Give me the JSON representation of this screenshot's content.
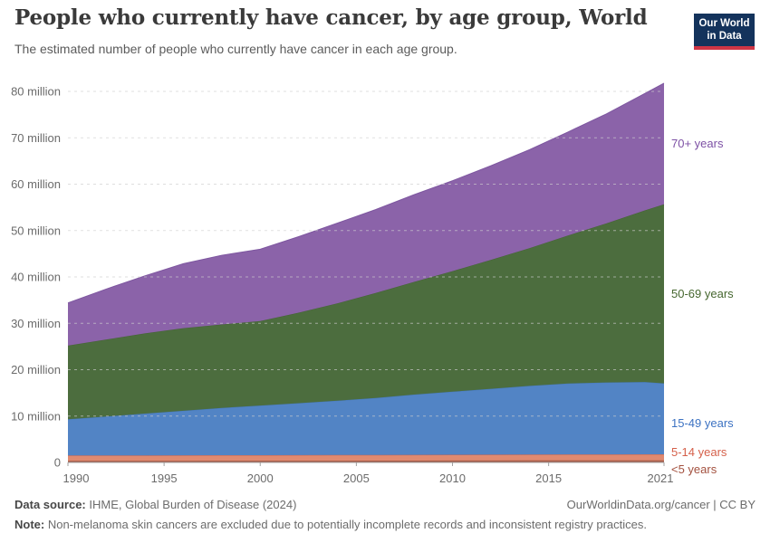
{
  "header": {
    "title": "People who currently have cancer, by age group, World",
    "subtitle": "The estimated number of people who currently have cancer in each age group.",
    "logo": {
      "line1": "Our World",
      "line2": "in Data",
      "bg": "#14335c",
      "bar": "#cf3545"
    }
  },
  "chart_data": {
    "type": "area",
    "stacked": true,
    "title": "People who currently have cancer, by age group, World",
    "unit": "million people",
    "grid": "horizontal-dashed",
    "legend_position": "right",
    "ylim": [
      0,
      80
    ],
    "x": [
      1990,
      1992,
      1994,
      1996,
      1998,
      2000,
      2002,
      2004,
      2006,
      2008,
      2010,
      2012,
      2014,
      2016,
      2018,
      2020,
      2021
    ],
    "xticks": [
      1990,
      1995,
      2000,
      2005,
      2010,
      2015,
      2021
    ],
    "yticks": [
      {
        "value": 0,
        "label": "0"
      },
      {
        "value": 10,
        "label": "10 million"
      },
      {
        "value": 20,
        "label": "20 million"
      },
      {
        "value": 30,
        "label": "30 million"
      },
      {
        "value": 40,
        "label": "40 million"
      },
      {
        "value": 50,
        "label": "50 million"
      },
      {
        "value": 60,
        "label": "60 million"
      },
      {
        "value": 70,
        "label": "70 million"
      },
      {
        "value": 80,
        "label": "80 million"
      }
    ],
    "series": [
      {
        "id": "under-5",
        "name": "<5 years",
        "fill": "#a9604d",
        "stroke": "#96513f",
        "text": "#a3513f",
        "values": [
          0.35,
          0.35,
          0.36,
          0.36,
          0.37,
          0.37,
          0.38,
          0.38,
          0.39,
          0.39,
          0.4,
          0.41,
          0.42,
          0.42,
          0.42,
          0.42,
          0.42
        ]
      },
      {
        "id": "5-14",
        "name": "5-14 years",
        "fill": "#e08a70",
        "stroke": "#c86450",
        "text": "#d5604a",
        "values": [
          1.15,
          1.16,
          1.17,
          1.19,
          1.19,
          1.2,
          1.21,
          1.22,
          1.23,
          1.24,
          1.25,
          1.27,
          1.29,
          1.31,
          1.32,
          1.33,
          1.33
        ]
      },
      {
        "id": "15-49",
        "name": "15-49 years",
        "fill": "#5284c5",
        "stroke": "#4779bc",
        "text": "#3c72c2",
        "values": [
          7.8,
          8.4,
          9.0,
          9.6,
          10.2,
          10.7,
          11.2,
          11.7,
          12.3,
          13.0,
          13.6,
          14.2,
          14.8,
          15.3,
          15.5,
          15.6,
          15.3
        ]
      },
      {
        "id": "50-69",
        "name": "50-69 years",
        "fill": "#4c6d3e",
        "stroke": "#456335",
        "text": "#46672f",
        "values": [
          15.9,
          16.6,
          17.3,
          17.8,
          18.0,
          18.2,
          19.5,
          21.0,
          22.6,
          24.3,
          26.0,
          27.8,
          29.7,
          31.9,
          34.3,
          37.0,
          38.6
        ]
      },
      {
        "id": "70-plus",
        "name": "70+ years",
        "fill": "#8b63a9",
        "stroke": "#7e57a0",
        "text": "#7d51a5",
        "values": [
          9.2,
          10.9,
          12.4,
          13.9,
          14.9,
          15.5,
          16.4,
          17.3,
          18.0,
          18.8,
          19.5,
          20.3,
          21.2,
          22.3,
          23.6,
          25.2,
          26.1
        ]
      }
    ]
  },
  "footer": {
    "source_label": "Data source:",
    "source_text": " IHME, Global Burden of Disease (2024)",
    "attribution": "OurWorldinData.org/cancer | CC BY",
    "note_label": "Note:",
    "note_text": " Non-melanoma skin cancers are excluded due to potentially incomplete records and inconsistent registry practices."
  }
}
